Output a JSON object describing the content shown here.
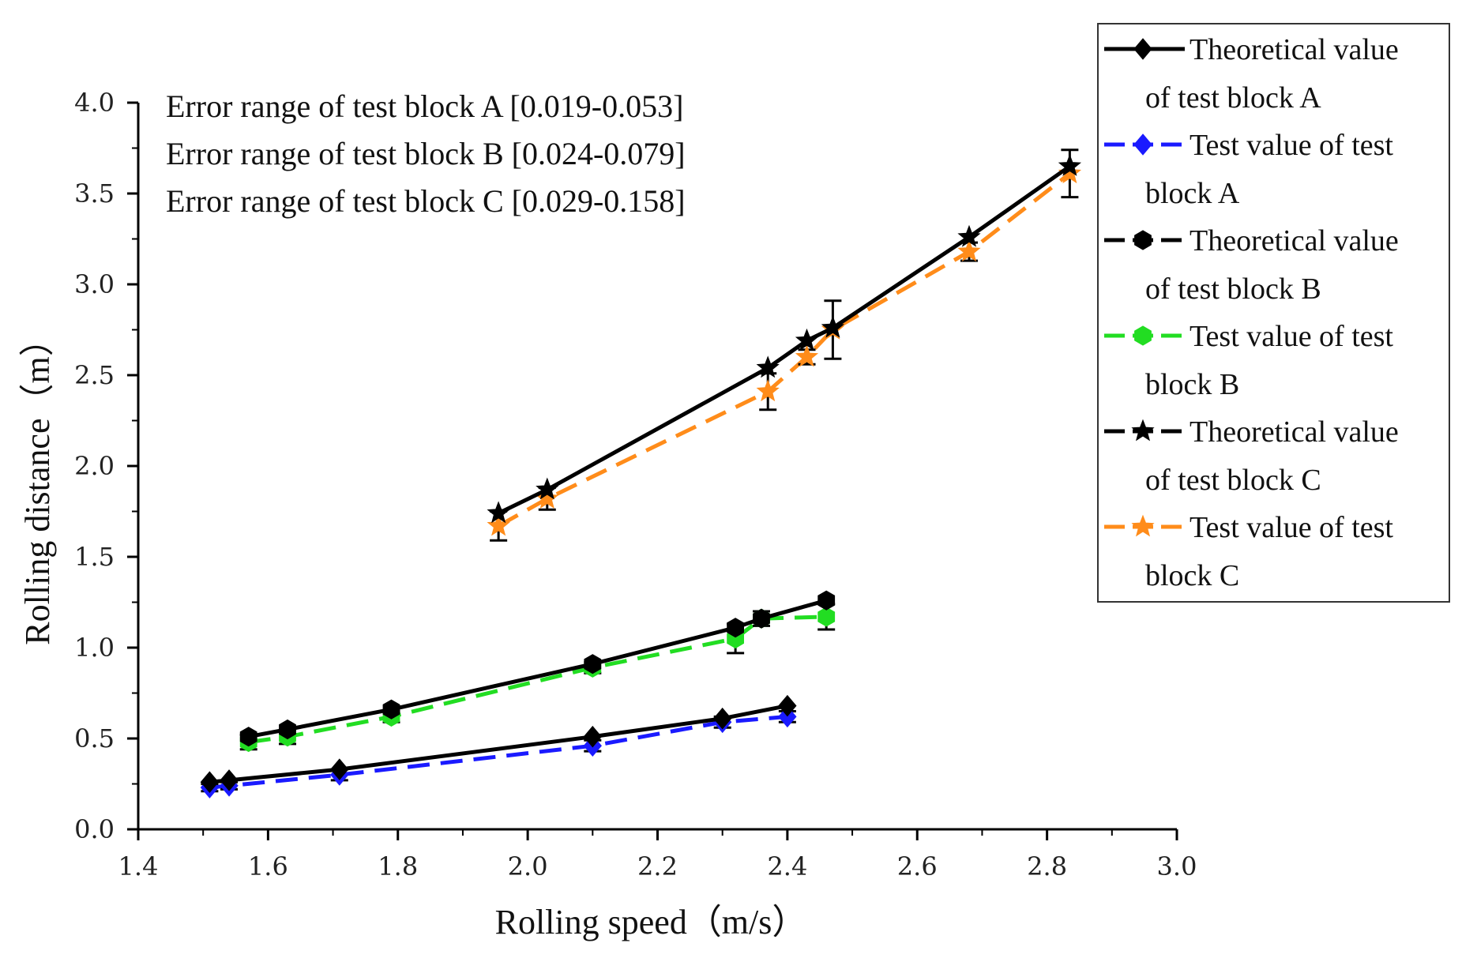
{
  "chart_data": {
    "type": "line",
    "title": "",
    "xlabel": "Rolling speed（m/s）",
    "ylabel": "Rolling distance（m）",
    "xlim": [
      1.4,
      3.0
    ],
    "ylim": [
      0.0,
      4.0
    ],
    "xticks": [
      "1.4",
      "1.6",
      "1.8",
      "2.0",
      "2.2",
      "2.4",
      "2.6",
      "2.8",
      "3.0"
    ],
    "yticks": [
      "0.0",
      "0.5",
      "1.0",
      "1.5",
      "2.0",
      "2.5",
      "3.0",
      "3.5",
      "4.0"
    ],
    "annotations": [
      "Error range of test block A [0.019-0.053]",
      "Error range of test block B [0.024-0.079]",
      "Error range of test block C [0.029-0.158]"
    ],
    "legend_position": "right",
    "series": [
      {
        "name": "Theoretical value of test block A",
        "legend_lines": [
          "Theoretical value",
          "of test block A"
        ],
        "color": "#000000",
        "dash": "solid",
        "marker": "diamond",
        "x": [
          1.51,
          1.54,
          1.71,
          2.1,
          2.3,
          2.4
        ],
        "y": [
          0.26,
          0.27,
          0.33,
          0.51,
          0.61,
          0.68
        ],
        "err": []
      },
      {
        "name": "Test value of test block A",
        "legend_lines": [
          "Test value of test",
          "block A"
        ],
        "color": "#1a1aff",
        "dash": "dashed",
        "marker": "diamond",
        "x": [
          1.51,
          1.54,
          1.71,
          2.1,
          2.3,
          2.4
        ],
        "y": [
          0.23,
          0.24,
          0.3,
          0.46,
          0.59,
          0.62
        ],
        "err": [
          0.02,
          0.02,
          0.03,
          0.03,
          0.03,
          0.03
        ]
      },
      {
        "name": "Theoretical value of test block B",
        "legend_lines": [
          "Theoretical value",
          "of test block B"
        ],
        "color": "#000000",
        "dash": "dashdot",
        "marker": "hexagon",
        "x": [
          1.57,
          1.63,
          1.79,
          2.1,
          2.32,
          2.36,
          2.46
        ],
        "y": [
          0.51,
          0.55,
          0.66,
          0.91,
          1.11,
          1.16,
          1.26
        ],
        "err": []
      },
      {
        "name": "Test value of test block B",
        "legend_lines": [
          "Test value of test",
          "block B"
        ],
        "color": "#22dd22",
        "dash": "dashed",
        "marker": "hexagon",
        "x": [
          1.57,
          1.63,
          1.79,
          2.1,
          2.32,
          2.36,
          2.46
        ],
        "y": [
          0.48,
          0.51,
          0.62,
          0.89,
          1.05,
          1.16,
          1.17
        ],
        "err": [
          0.04,
          0.04,
          0.03,
          0.03,
          0.08,
          0.04,
          0.07
        ]
      },
      {
        "name": "Theoretical value of test block C",
        "legend_lines": [
          "Theoretical value",
          "of test block C"
        ],
        "color": "#000000",
        "dash": "dashdot",
        "marker": "star",
        "x": [
          1.955,
          2.03,
          2.37,
          2.43,
          2.47,
          2.68,
          2.835
        ],
        "y": [
          1.74,
          1.87,
          2.54,
          2.69,
          2.76,
          3.26,
          3.65
        ],
        "err": []
      },
      {
        "name": "Test value of test block C",
        "legend_lines": [
          "Test value of test",
          "block C"
        ],
        "color": "#ff8c1a",
        "dash": "dashed",
        "marker": "star",
        "x": [
          1.955,
          2.03,
          2.37,
          2.43,
          2.47,
          2.68,
          2.835
        ],
        "y": [
          1.67,
          1.82,
          2.41,
          2.6,
          2.75,
          3.18,
          3.61
        ],
        "err": [
          0.08,
          0.06,
          0.1,
          0.04,
          0.16,
          0.05,
          0.13
        ]
      }
    ]
  }
}
